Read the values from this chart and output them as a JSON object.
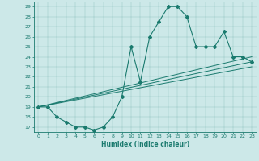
{
  "xlabel": "Humidex (Indice chaleur)",
  "bg_color": "#cce8e8",
  "line_color": "#1a7a6e",
  "xlim": [
    -0.5,
    23.5
  ],
  "ylim": [
    16.5,
    29.5
  ],
  "xticks": [
    0,
    1,
    2,
    3,
    4,
    5,
    6,
    7,
    8,
    9,
    10,
    11,
    12,
    13,
    14,
    15,
    16,
    17,
    18,
    19,
    20,
    21,
    22,
    23
  ],
  "yticks": [
    17,
    18,
    19,
    20,
    21,
    22,
    23,
    24,
    25,
    26,
    27,
    28,
    29
  ],
  "series1_x": [
    0,
    1,
    2,
    3,
    4,
    5,
    6,
    7,
    8,
    9,
    10,
    11,
    12,
    13,
    14,
    15,
    16,
    17,
    18,
    19,
    20,
    21,
    22,
    23
  ],
  "series1_y": [
    19,
    19,
    18,
    17.5,
    17,
    17,
    16.7,
    17,
    18,
    20,
    25,
    21.5,
    26,
    27.5,
    29,
    29,
    28,
    25,
    25,
    25,
    26.5,
    24,
    24,
    23.5
  ],
  "series2_x": [
    0,
    23
  ],
  "series2_y": [
    19,
    23.5
  ],
  "series3_x": [
    0,
    23
  ],
  "series3_y": [
    19,
    24.0
  ],
  "series4_x": [
    0,
    23
  ],
  "series4_y": [
    19,
    23.0
  ]
}
